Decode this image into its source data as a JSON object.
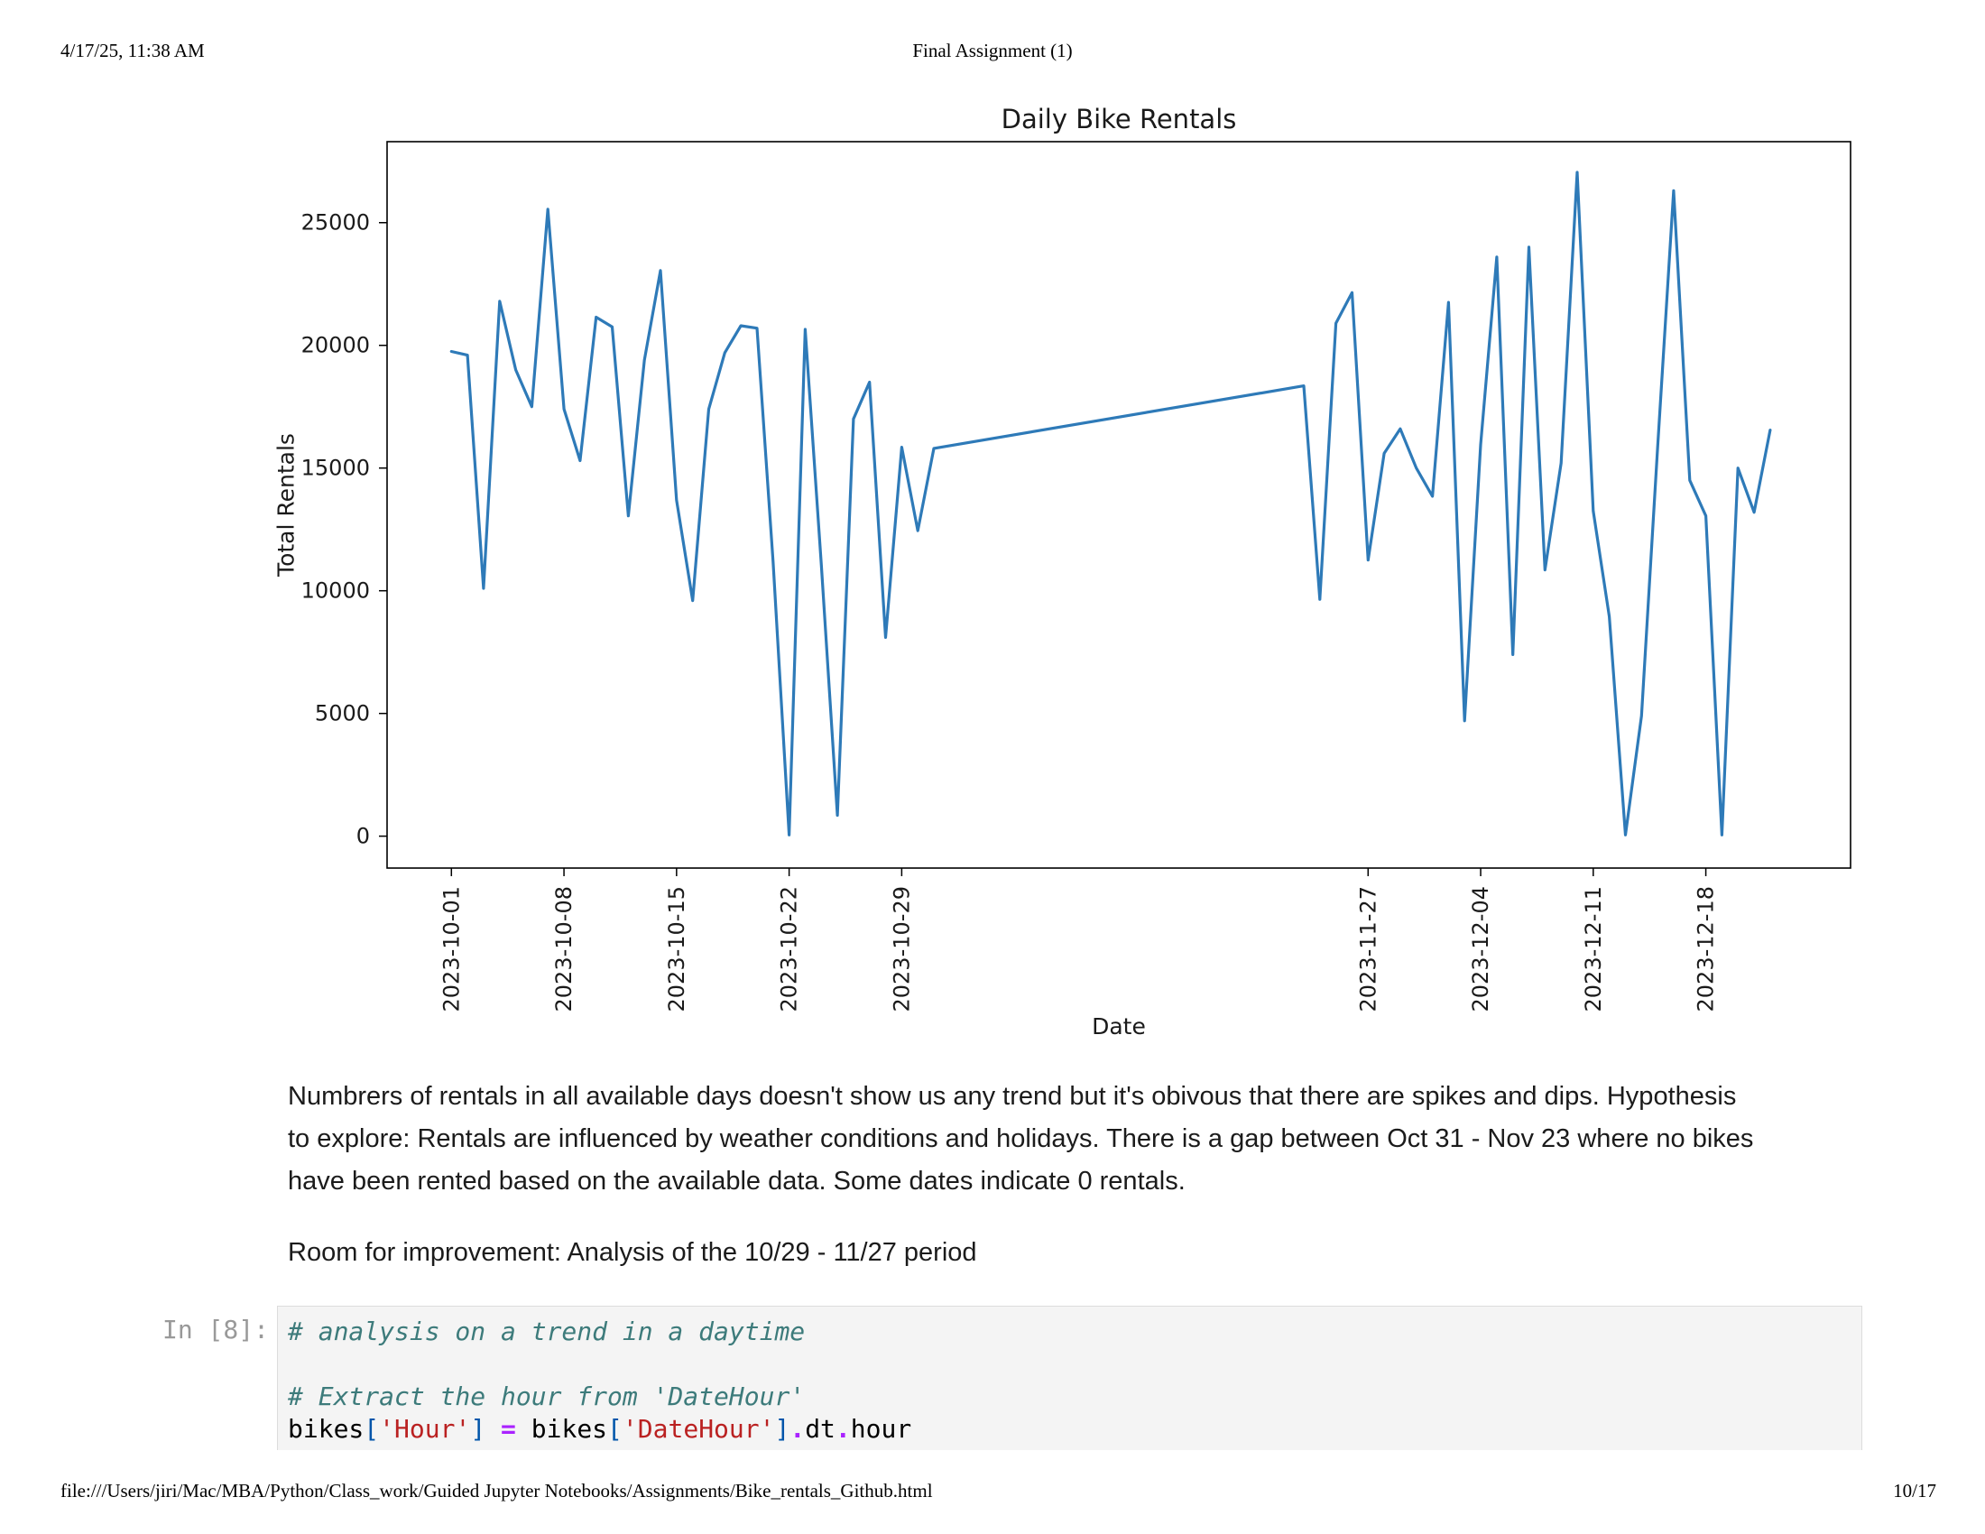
{
  "print_header": {
    "datetime": "4/17/25, 11:38 AM",
    "title": "Final Assignment (1)"
  },
  "print_footer": {
    "path": "file:///Users/jiri/Mac/MBA/Python/Class_work/Guided Jupyter Notebooks/Assignments/Bike_rentals_Github.html",
    "page": "10/17"
  },
  "chart_data": {
    "type": "line",
    "title": "Daily Bike Rentals",
    "xlabel": "Date",
    "ylabel": "Total Rentals",
    "x_type": "date",
    "xlim": [
      "2023-09-27",
      "2023-12-27"
    ],
    "ylim": [
      -1300,
      28300
    ],
    "yticks": [
      0,
      5000,
      10000,
      15000,
      20000,
      25000
    ],
    "xticks": [
      "2023-10-01",
      "2023-10-08",
      "2023-10-15",
      "2023-10-22",
      "2023-10-29",
      "2023-11-27",
      "2023-12-04",
      "2023-12-11",
      "2023-12-18"
    ],
    "grid": false,
    "legend": "none",
    "color": "#2e7ab8",
    "x": [
      "2023-10-01",
      "2023-10-02",
      "2023-10-03",
      "2023-10-04",
      "2023-10-05",
      "2023-10-06",
      "2023-10-07",
      "2023-10-08",
      "2023-10-09",
      "2023-10-10",
      "2023-10-11",
      "2023-10-12",
      "2023-10-13",
      "2023-10-14",
      "2023-10-15",
      "2023-10-16",
      "2023-10-17",
      "2023-10-18",
      "2023-10-19",
      "2023-10-20",
      "2023-10-21",
      "2023-10-22",
      "2023-10-23",
      "2023-10-24",
      "2023-10-25",
      "2023-10-26",
      "2023-10-27",
      "2023-10-28",
      "2023-10-29",
      "2023-10-30",
      "2023-10-31",
      "2023-11-23",
      "2023-11-24",
      "2023-11-25",
      "2023-11-26",
      "2023-11-27",
      "2023-11-28",
      "2023-11-29",
      "2023-11-30",
      "2023-12-01",
      "2023-12-02",
      "2023-12-03",
      "2023-12-04",
      "2023-12-05",
      "2023-12-06",
      "2023-12-07",
      "2023-12-08",
      "2023-12-09",
      "2023-12-10",
      "2023-12-11",
      "2023-12-12",
      "2023-12-13",
      "2023-12-14",
      "2023-12-15",
      "2023-12-16",
      "2023-12-17",
      "2023-12-18",
      "2023-12-19",
      "2023-12-20",
      "2023-12-21",
      "2023-12-22"
    ],
    "y": [
      19750,
      19600,
      10100,
      21800,
      19000,
      17500,
      25550,
      17400,
      15300,
      21150,
      20750,
      13050,
      19400,
      23050,
      13700,
      9600,
      17400,
      19700,
      20800,
      20700,
      11200,
      50,
      20650,
      11050,
      850,
      17000,
      18500,
      8100,
      15850,
      12450,
      15800,
      18350,
      9650,
      20900,
      22150,
      11250,
      15600,
      16600,
      15000,
      13850,
      21750,
      4700,
      15950,
      23600,
      7400,
      24000,
      10850,
      15200,
      27050,
      13250,
      8950,
      50,
      4900,
      15800,
      26300,
      14500,
      13050,
      50,
      15000,
      13200,
      16550
    ]
  },
  "markdown": {
    "paragraph1": [
      "Numbrers of rentals in all available days doesn't show us any trend but it's obivous that there are spikes and dips. Hypothesis",
      "to explore: Rentals are influenced by weather conditions and holidays. There is a gap between Oct 31 - Nov 23 where no bikes",
      "have been rented based on the available data. Some dates indicate 0 rentals."
    ],
    "paragraph2": "Room for improvement: Analysis of the 10/29 - 11/27 period"
  },
  "code_cell": {
    "prompt": "In [8]:",
    "comment1": "# analysis on a trend in a daytime",
    "comment2": "# Extract the hour from 'DateHour'",
    "line3": {
      "t1": "bikes",
      "t2": "[",
      "t3": "'Hour'",
      "t4": "]",
      "t5": " ",
      "t6": "=",
      "t7": " bikes",
      "t8": "[",
      "t9": "'DateHour'",
      "t10": "]",
      "t11": ".",
      "t12": "dt",
      "t13": ".",
      "t14": "hour"
    }
  }
}
